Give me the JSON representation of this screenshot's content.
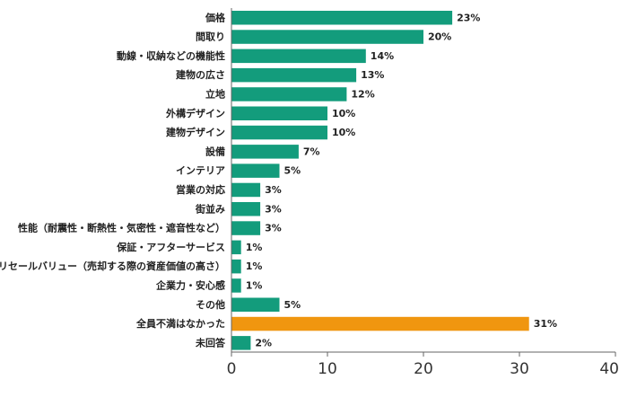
{
  "chart_data": {
    "type": "bar",
    "orientation": "horizontal",
    "categories": [
      "価格",
      "間取り",
      "動線・収納などの機能性",
      "建物の広さ",
      "立地",
      "外構デザイン",
      "建物デザイン",
      "設備",
      "インテリア",
      "営業の対応",
      "街並み",
      "性能（耐震性・断熱性・気密性・遮音性など）",
      "保証・アフターサービス",
      "リセールバリュー（売却する際の資産価値の高さ）",
      "企業力・安心感",
      "その他",
      "全員不満はなかった",
      "未回答"
    ],
    "values": [
      23,
      20,
      14,
      13,
      12,
      10,
      10,
      7,
      5,
      3,
      3,
      3,
      1,
      1,
      1,
      5,
      31,
      2
    ],
    "value_labels": [
      "23%",
      "20%",
      "14%",
      "13%",
      "12%",
      "10%",
      "10%",
      "7%",
      "5%",
      "3%",
      "3%",
      "3%",
      "1%",
      "1%",
      "1%",
      "5%",
      "31%",
      "2%"
    ],
    "highlight_index": 16,
    "xlim": [
      0,
      40
    ],
    "xticks": [
      "0",
      "10",
      "20",
      "30",
      "40"
    ],
    "title": "",
    "xlabel": "",
    "ylabel": "",
    "grid": false,
    "colors": {
      "bar": "#139c7c",
      "highlight": "#f0960f",
      "axis": "#666666"
    }
  }
}
